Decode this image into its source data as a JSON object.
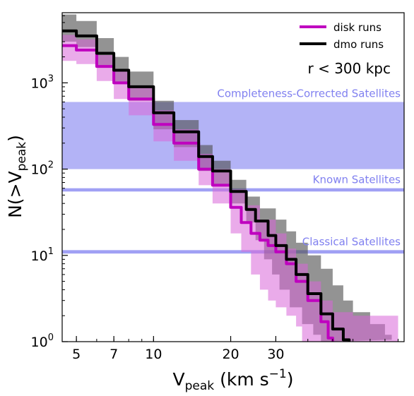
{
  "chart_data": {
    "type": "line",
    "title": "",
    "xlabel": "V",
    "xlabel_sub": "peak",
    "xlabel_units": " (km s",
    "xlabel_sup": "−1",
    "xlabel_close": ")",
    "ylabel": "N(>V",
    "ylabel_sub": "peak",
    "ylabel_close": ")",
    "xscale": "log",
    "yscale": "log",
    "xlim": [
      4.4,
      95
    ],
    "ylim": [
      1,
      6500
    ],
    "grid": false,
    "xticks": [
      5,
      7,
      10,
      20,
      30
    ],
    "xtick_labels": [
      "5",
      "7",
      "10",
      "20",
      "30"
    ],
    "yticks": [
      1,
      10,
      100,
      1000
    ],
    "ytick_labels": [
      {
        "base": "10",
        "exp": "0"
      },
      {
        "base": "10",
        "exp": "1"
      },
      {
        "base": "10",
        "exp": "2"
      },
      {
        "base": "10",
        "exp": "3"
      }
    ],
    "annotation": "r < 300 kpc",
    "legend": {
      "placement": "top-right",
      "entries": [
        {
          "label": "disk runs",
          "color": "#bf00bf"
        },
        {
          "label": "dmo runs",
          "color": "#000000"
        }
      ]
    },
    "reference_bands": [
      {
        "label": "Completeness-Corrected Satellites",
        "y_low": 100,
        "y_high": 600,
        "color": "#8080f0"
      },
      {
        "label": "Known Satellites",
        "y_low": 55,
        "y_high": 60,
        "color": "#8080f0"
      },
      {
        "label": "Classical Satellites",
        "y_low": 10.5,
        "y_high": 11.5,
        "color": "#8080f0"
      }
    ],
    "series": [
      {
        "name": "dmo runs",
        "color": "#000000",
        "fill": "#505050",
        "median": [
          [
            4.4,
            4000
          ],
          [
            5,
            3500
          ],
          [
            6,
            2200
          ],
          [
            7,
            1400
          ],
          [
            8,
            900
          ],
          [
            10,
            450
          ],
          [
            12,
            270
          ],
          [
            15,
            140
          ],
          [
            17,
            95
          ],
          [
            20,
            55
          ],
          [
            23,
            34
          ],
          [
            25,
            25
          ],
          [
            28,
            17
          ],
          [
            30,
            13
          ],
          [
            33,
            9
          ],
          [
            36,
            6
          ],
          [
            40,
            3.6
          ],
          [
            45,
            2.1
          ],
          [
            50,
            1.4
          ],
          [
            55,
            1.05
          ],
          [
            58,
            1
          ]
        ],
        "band_high": [
          [
            4.4,
            6200
          ],
          [
            5,
            5200
          ],
          [
            6,
            3300
          ],
          [
            7,
            2000
          ],
          [
            8,
            1350
          ],
          [
            10,
            620
          ],
          [
            12,
            370
          ],
          [
            15,
            190
          ],
          [
            17,
            125
          ],
          [
            20,
            75
          ],
          [
            23,
            48
          ],
          [
            26,
            35
          ],
          [
            30,
            26
          ],
          [
            33,
            19
          ],
          [
            36,
            14
          ],
          [
            40,
            10
          ],
          [
            45,
            7
          ],
          [
            50,
            4.5
          ],
          [
            55,
            3
          ],
          [
            60,
            2.2
          ],
          [
            70,
            1.6
          ],
          [
            80,
            1.2
          ],
          [
            85,
            1.05
          ]
        ],
        "band_low": [
          [
            4.4,
            3000
          ],
          [
            5,
            2600
          ],
          [
            6,
            1600
          ],
          [
            7,
            1000
          ],
          [
            8,
            620
          ],
          [
            10,
            290
          ],
          [
            12,
            180
          ],
          [
            15,
            95
          ],
          [
            17,
            65
          ],
          [
            20,
            40
          ],
          [
            23,
            24
          ],
          [
            25,
            15
          ],
          [
            27,
            9
          ],
          [
            29,
            6
          ],
          [
            31,
            4
          ],
          [
            34,
            2.5
          ],
          [
            38,
            1.6
          ],
          [
            42,
            1.2
          ],
          [
            45,
            1
          ]
        ]
      },
      {
        "name": "disk runs",
        "color": "#bf00bf",
        "fill": "#d966d9",
        "median": [
          [
            4.4,
            2700
          ],
          [
            5,
            2400
          ],
          [
            6,
            1550
          ],
          [
            7,
            1000
          ],
          [
            8,
            650
          ],
          [
            10,
            330
          ],
          [
            12,
            200
          ],
          [
            15,
            100
          ],
          [
            17,
            65
          ],
          [
            20,
            36
          ],
          [
            22,
            24
          ],
          [
            24,
            18
          ],
          [
            26,
            15
          ],
          [
            28,
            13
          ],
          [
            30,
            11
          ],
          [
            33,
            8
          ],
          [
            36,
            5
          ],
          [
            40,
            3
          ],
          [
            45,
            1.7
          ],
          [
            48,
            1.1
          ],
          [
            50,
            1
          ]
        ],
        "band_high": [
          [
            4.4,
            3600
          ],
          [
            5,
            3200
          ],
          [
            6,
            2100
          ],
          [
            7,
            1400
          ],
          [
            8,
            880
          ],
          [
            10,
            480
          ],
          [
            12,
            290
          ],
          [
            15,
            150
          ],
          [
            17,
            100
          ],
          [
            20,
            58
          ],
          [
            23,
            38
          ],
          [
            26,
            26
          ],
          [
            30,
            18
          ],
          [
            33,
            12
          ],
          [
            36,
            8
          ],
          [
            40,
            5
          ],
          [
            45,
            3
          ],
          [
            50,
            2.2
          ],
          [
            60,
            2
          ],
          [
            80,
            2
          ],
          [
            90,
            2
          ],
          [
            90,
            1
          ]
        ],
        "band_low": [
          [
            4.4,
            1800
          ],
          [
            5,
            1650
          ],
          [
            6,
            1050
          ],
          [
            7,
            650
          ],
          [
            8,
            420
          ],
          [
            10,
            210
          ],
          [
            12,
            125
          ],
          [
            15,
            65
          ],
          [
            17,
            40
          ],
          [
            20,
            18
          ],
          [
            22,
            11
          ],
          [
            24,
            6
          ],
          [
            26,
            4
          ],
          [
            28,
            3
          ],
          [
            30,
            2.5
          ],
          [
            33,
            2
          ],
          [
            36,
            1.5
          ],
          [
            38,
            1
          ]
        ]
      }
    ]
  }
}
